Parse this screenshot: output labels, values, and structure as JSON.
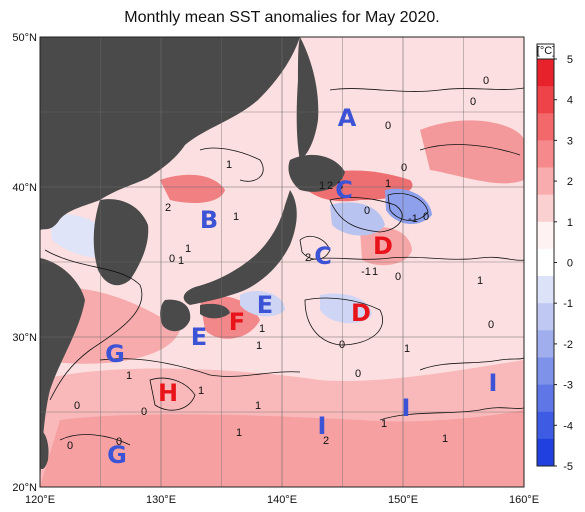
{
  "title": "Monthly mean SST anomalies for May 2020.",
  "axes": {
    "lat_labels": [
      "50°N",
      "40°N",
      "30°N",
      "20°N"
    ],
    "lon_labels": [
      "120°E",
      "130°E",
      "140°E",
      "150°E",
      "160°E"
    ]
  },
  "colorbar": {
    "unit": "[°C]",
    "ticks": [
      "5",
      "4",
      "3",
      "2",
      "1",
      "0",
      "-1",
      "-2",
      "-3",
      "-4",
      "-5"
    ],
    "colors": [
      "#e8222b",
      "#ee4449",
      "#f2686b",
      "#f5898b",
      "#f8acad",
      "#fbd0d1",
      "#fff2f2",
      "#ffffff",
      "#dce2f7",
      "#bfc8f2",
      "#a0aeee",
      "#7f92ea",
      "#5f77e6",
      "#3e5be3",
      "#2040e0"
    ]
  },
  "colors": {
    "land": "#4a4a4a",
    "ocean_base": "#fcdfe0",
    "warm_label": "#e8141a",
    "cool_label": "#3d53d6"
  },
  "regions": [
    {
      "id": "A",
      "tone": "cool"
    },
    {
      "id": "B",
      "tone": "cool"
    },
    {
      "id": "C",
      "tone": "cool"
    },
    {
      "id": "C",
      "tone": "cool"
    },
    {
      "id": "D",
      "tone": "warm"
    },
    {
      "id": "D",
      "tone": "warm"
    },
    {
      "id": "E",
      "tone": "cool"
    },
    {
      "id": "E",
      "tone": "cool"
    },
    {
      "id": "F",
      "tone": "warm"
    },
    {
      "id": "G",
      "tone": "cool"
    },
    {
      "id": "G",
      "tone": "cool"
    },
    {
      "id": "H",
      "tone": "warm"
    },
    {
      "id": "I",
      "tone": "cool"
    },
    {
      "id": "I",
      "tone": "cool"
    },
    {
      "id": "I",
      "tone": "cool"
    }
  ],
  "contour_labels": [
    "0",
    "0",
    "0",
    "0",
    "1",
    "1",
    "2",
    "3",
    "1",
    "1",
    "2",
    "1",
    "0",
    "1",
    "0",
    "-1",
    "0",
    "2",
    "1",
    "-1",
    "0",
    "1",
    "1",
    "1",
    "1",
    "0",
    "0",
    "1",
    "0",
    "1",
    "0",
    "1",
    "0",
    "1",
    "2",
    "1",
    "1",
    "0",
    "0"
  ]
}
